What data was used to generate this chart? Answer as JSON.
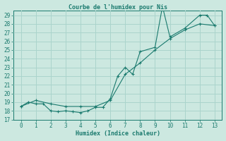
{
  "title": "Courbe de l'humidex pour Nis",
  "xlabel": "Humidex (Indice chaleur)",
  "xlim": [
    -0.5,
    13.5
  ],
  "ylim": [
    17,
    29.5
  ],
  "yticks": [
    17,
    18,
    19,
    20,
    21,
    22,
    23,
    24,
    25,
    26,
    27,
    28,
    29
  ],
  "xticks": [
    0,
    1,
    2,
    3,
    4,
    5,
    6,
    7,
    8,
    9,
    10,
    11,
    12,
    13
  ],
  "bg_color": "#cce8e0",
  "line_color": "#1a7a6e",
  "grid_color": "#aad4cc",
  "title_color": "#1a7a6e",
  "line1_x": [
    0,
    0.5,
    1,
    1.5,
    2,
    2.5,
    3,
    3.5,
    4,
    4.5,
    5,
    5.5,
    6,
    6.5,
    7,
    7.5,
    8,
    9,
    9.5,
    10,
    11,
    12,
    12.5,
    13
  ],
  "line1_y": [
    18.5,
    19.0,
    18.8,
    18.8,
    18.0,
    17.9,
    18.0,
    17.9,
    17.8,
    18.0,
    18.4,
    18.4,
    19.4,
    22.0,
    23.0,
    22.2,
    24.8,
    25.3,
    30.0,
    26.5,
    27.5,
    29.0,
    29.0,
    27.8
  ],
  "line2_x": [
    0,
    1,
    2,
    3,
    4,
    5,
    6,
    7,
    8,
    9,
    10,
    11,
    12,
    13
  ],
  "line2_y": [
    18.5,
    19.2,
    18.8,
    18.5,
    18.5,
    18.5,
    19.2,
    22.2,
    23.5,
    25.0,
    26.3,
    27.3,
    28.0,
    27.8
  ]
}
